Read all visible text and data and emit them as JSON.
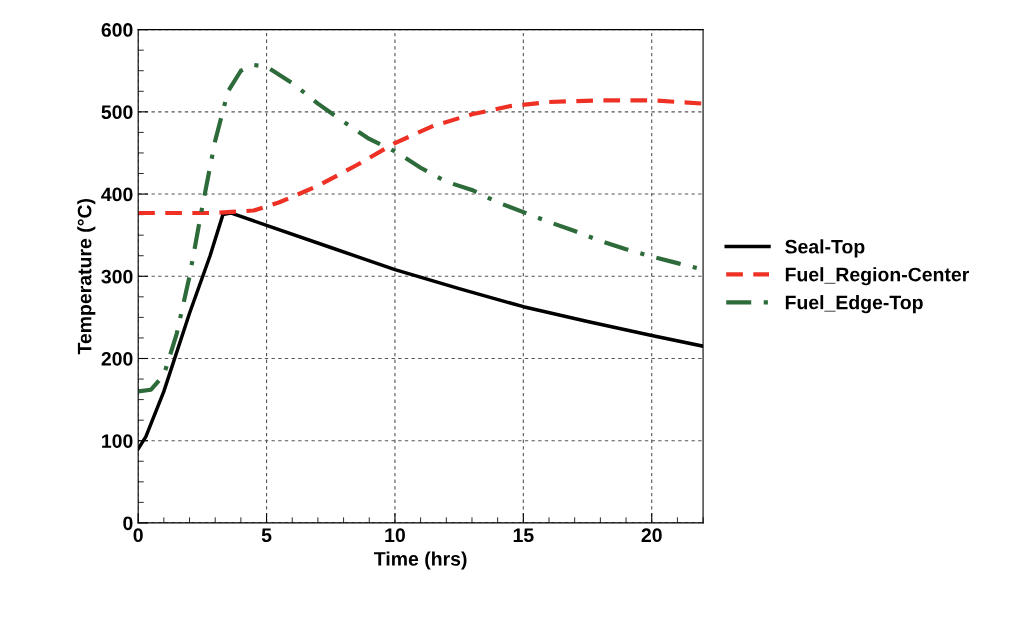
{
  "chart_data": {
    "type": "line",
    "xlabel": "Time (hrs)",
    "ylabel": "Temperature (°C)",
    "xlim": [
      0,
      22
    ],
    "xticks": [
      0,
      5,
      10,
      15,
      20
    ],
    "ylim": [
      0,
      600
    ],
    "yticks": [
      0,
      100,
      200,
      300,
      400,
      500,
      600
    ],
    "grid": true,
    "legend": "right",
    "series": [
      {
        "name": "Seal-Top",
        "color": "#000000",
        "line_style": "solid",
        "x": [
          0,
          0.3,
          1,
          2,
          2.8,
          3.3,
          3.6,
          5,
          7.5,
          10,
          12.5,
          15,
          17.5,
          20,
          22
        ],
        "values": [
          90,
          105,
          160,
          255,
          325,
          375,
          377,
          362,
          335,
          308,
          285,
          263,
          245,
          228,
          215
        ]
      },
      {
        "name": "Fuel_Region-Center",
        "color": "#ee3124",
        "line_style": "dashed",
        "x": [
          0,
          3,
          4.5,
          5.5,
          7,
          8.5,
          10,
          11.5,
          13,
          14.5,
          16,
          18,
          20,
          21,
          22
        ],
        "values": [
          377,
          377,
          380,
          390,
          410,
          435,
          462,
          483,
          497,
          507,
          512,
          514,
          514,
          512,
          510
        ]
      },
      {
        "name": "Fuel_Edge-Top",
        "color": "#2e6b3a",
        "line_style": "dashdot",
        "x": [
          0,
          0.5,
          1,
          1.5,
          2,
          2.5,
          3,
          3.5,
          4,
          4.5,
          5,
          6,
          7,
          8,
          9,
          10,
          11,
          12,
          13,
          14,
          15,
          16,
          17,
          18,
          19,
          20,
          21,
          22
        ],
        "values": [
          160,
          162,
          180,
          230,
          300,
          385,
          465,
          525,
          550,
          557,
          555,
          535,
          510,
          488,
          467,
          452,
          432,
          415,
          405,
          390,
          378,
          366,
          355,
          343,
          333,
          324,
          316,
          308
        ]
      }
    ]
  }
}
